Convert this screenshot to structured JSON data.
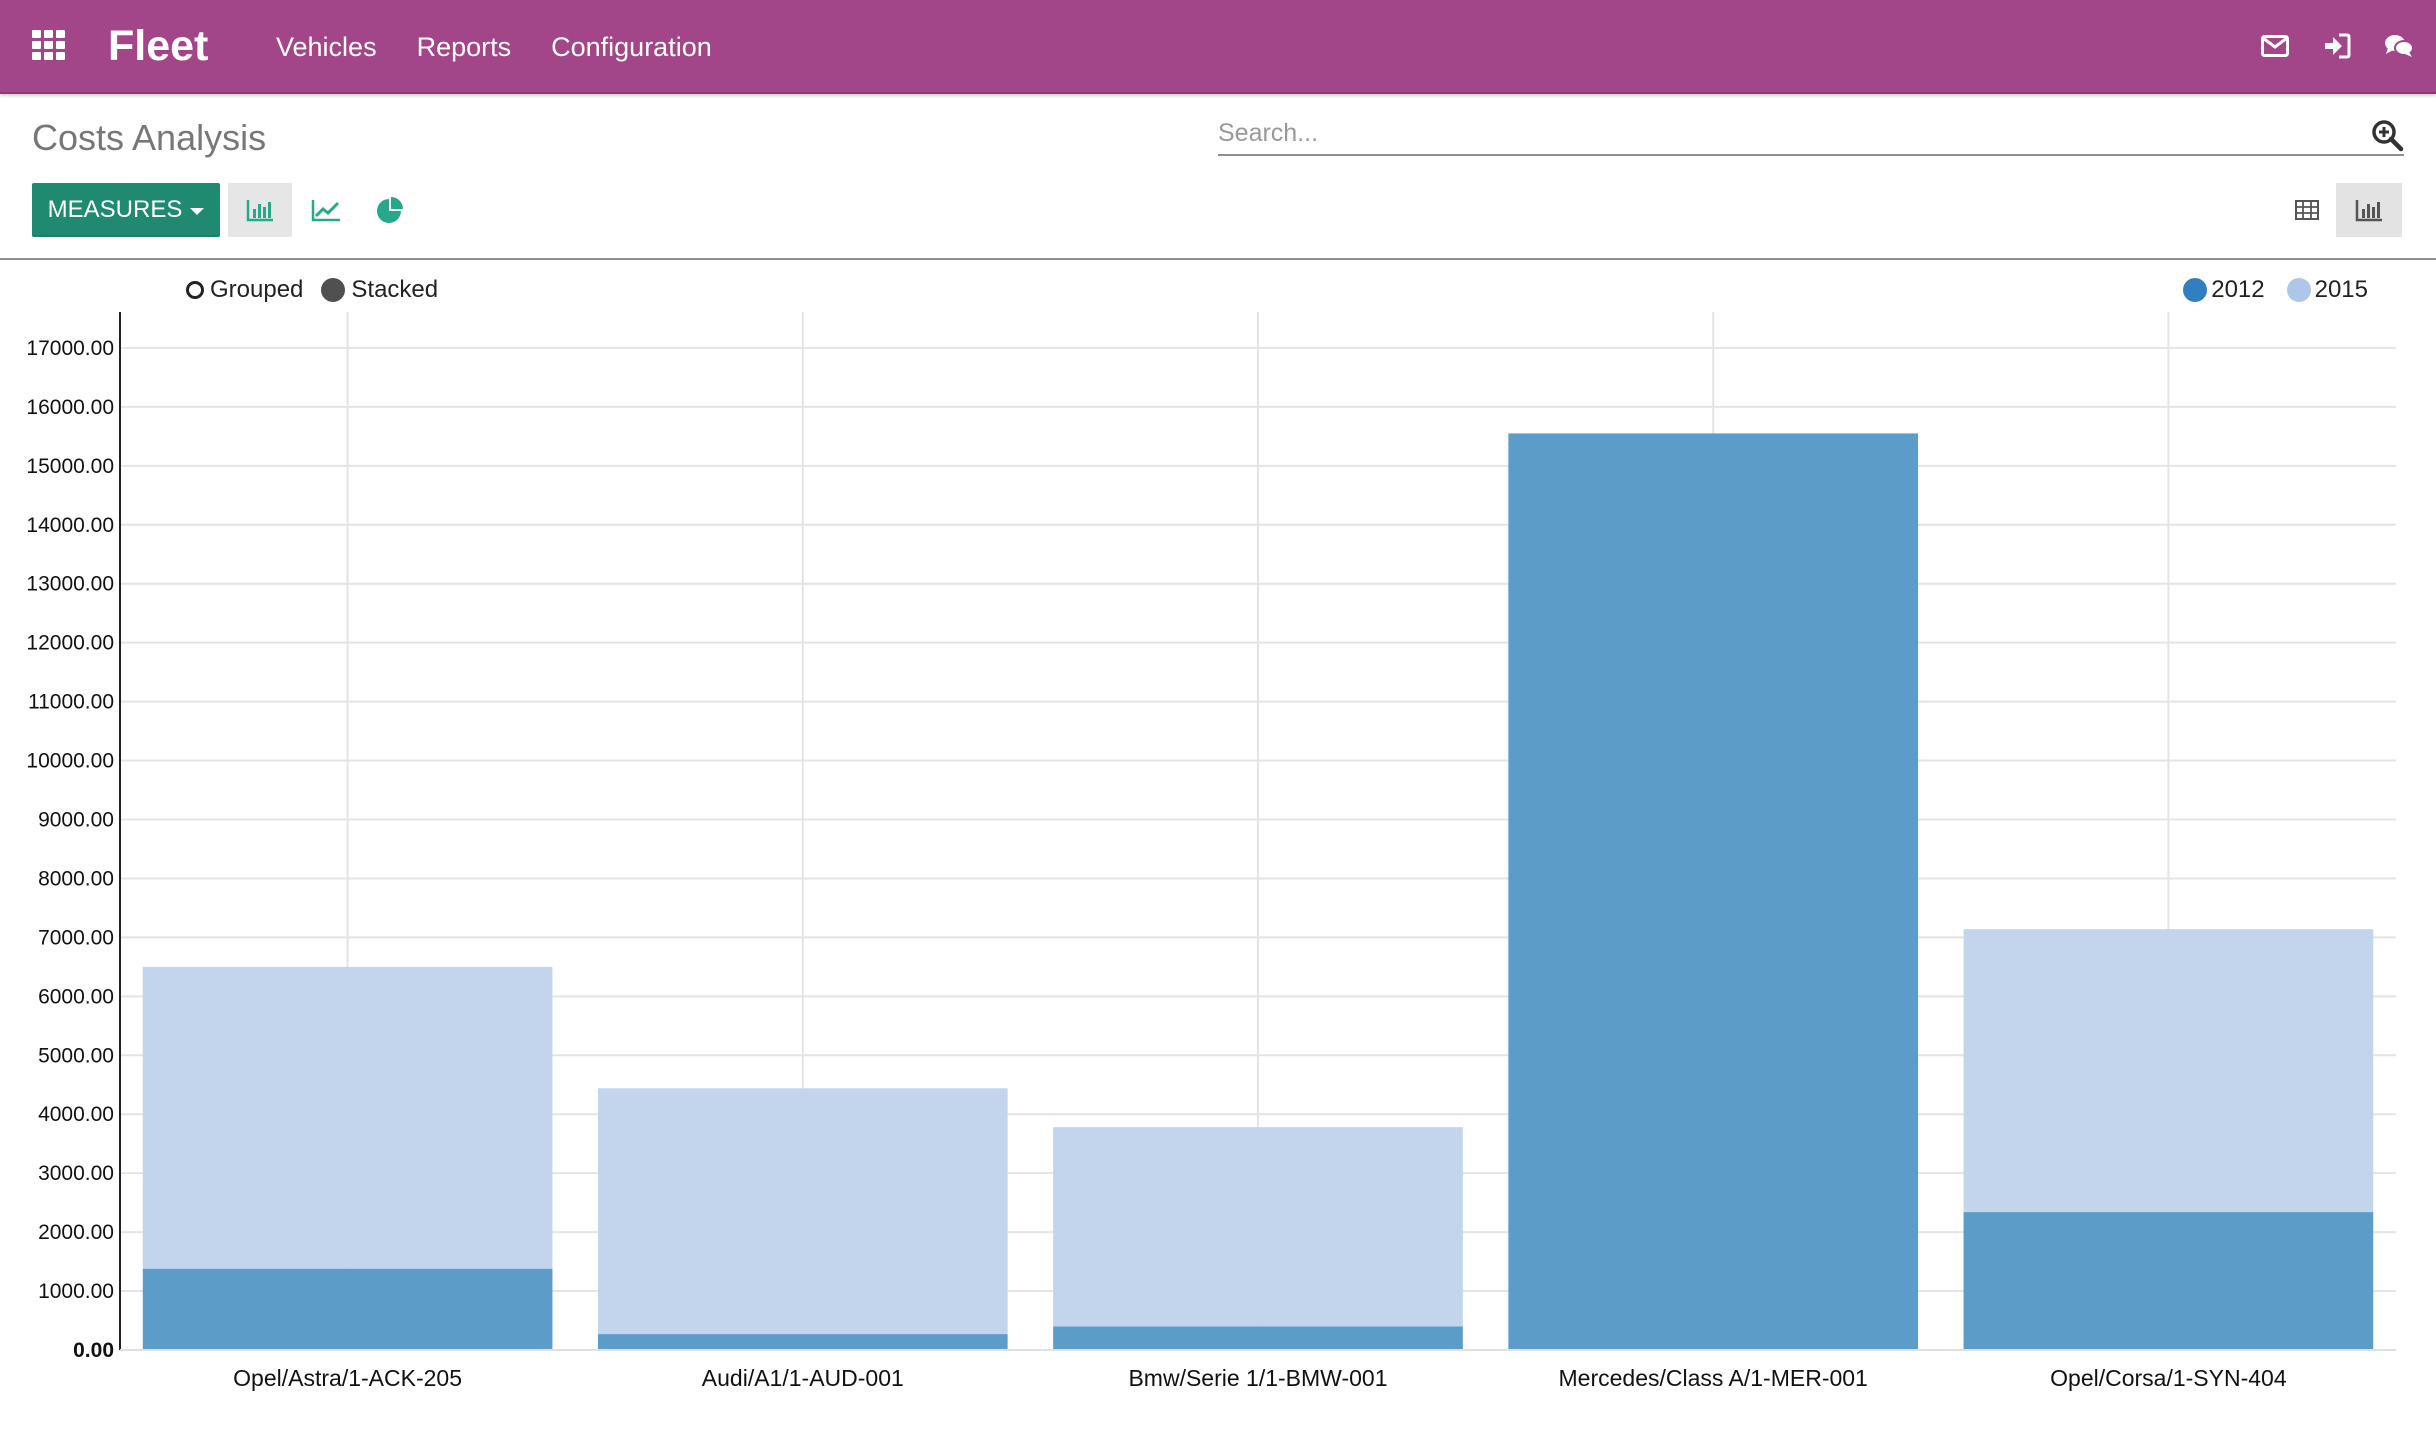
{
  "navbar": {
    "brand": "Fleet",
    "menu": [
      "Vehicles",
      "Reports",
      "Configuration"
    ]
  },
  "control_panel": {
    "title": "Costs Analysis",
    "search_placeholder": "Search...",
    "measures_label": "MEASURES"
  },
  "chart_options": {
    "grouped_label": "Grouped",
    "stacked_label": "Stacked",
    "selected_mode": "stacked"
  },
  "colors": {
    "navbar": "#a24689",
    "primary_button": "#1f8a70",
    "icon_teal": "#26a98b",
    "series_2012": "#5b9cc8",
    "series_2015": "#c2d5ed"
  },
  "chart_data": {
    "type": "bar",
    "stacked": true,
    "categories": [
      "Opel/Astra/1-ACK-205",
      "Audi/A1/1-AUD-001",
      "Bmw/Serie 1/1-BMW-001",
      "Mercedes/Class A/1-MER-001",
      "Opel/Corsa/1-SYN-404"
    ],
    "series": [
      {
        "name": "2012",
        "values": [
          1380,
          270,
          400,
          15550,
          2340
        ]
      },
      {
        "name": "2015",
        "values": [
          5120,
          4170,
          3380,
          0,
          4800
        ]
      }
    ],
    "y_ticks": [
      "0.00",
      "1000.00",
      "2000.00",
      "3000.00",
      "4000.00",
      "5000.00",
      "6000.00",
      "7000.00",
      "8000.00",
      "9000.00",
      "10000.00",
      "11000.00",
      "12000.00",
      "13000.00",
      "14000.00",
      "15000.00",
      "16000.00",
      "17000.00"
    ],
    "ylim": [
      0,
      17000
    ],
    "legend_position": "top-right",
    "grid": true
  }
}
